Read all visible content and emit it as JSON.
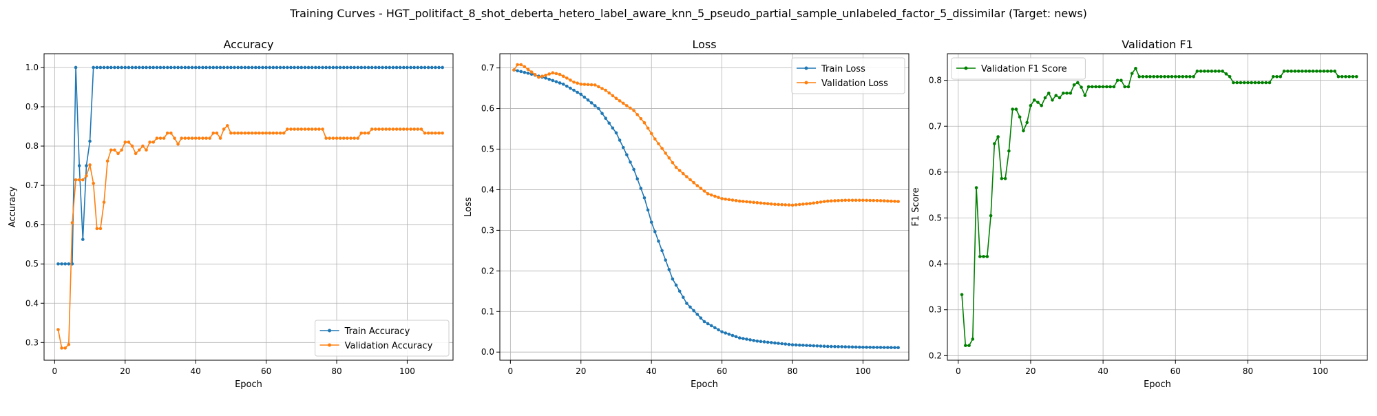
{
  "figure": {
    "suptitle": "Training Curves - HGT_politifact_8_shot_deberta_hetero_label_aware_knn_5_pseudo_partial_sample_unlabeled_factor_5_dissimilar (Target: news)"
  },
  "colors": {
    "blue": "#1f77b4",
    "orange": "#ff7f0e",
    "green": "#008000",
    "grid": "#b0b0b0"
  },
  "chart_data": [
    {
      "type": "line",
      "title": "Accuracy",
      "xlabel": "Epoch",
      "ylabel": "Accuracy",
      "xlim": [
        -3,
        113
      ],
      "ylim": [
        0.255,
        1.035
      ],
      "xticks": [
        0,
        20,
        40,
        60,
        80,
        100
      ],
      "yticks": [
        0.3,
        0.4,
        0.5,
        0.6,
        0.7,
        0.8,
        0.9,
        1.0
      ],
      "grid": true,
      "legend_loc": "lower-right",
      "series": [
        {
          "name": "Train Accuracy",
          "color": "#1f77b4",
          "x_start": 1,
          "x_end": 110,
          "keypoints": [
            [
              1,
              0.5
            ],
            [
              5,
              0.5
            ],
            [
              6,
              1.0
            ],
            [
              7,
              0.75
            ],
            [
              8,
              0.5625
            ],
            [
              9,
              0.75
            ],
            [
              10,
              0.8125
            ],
            [
              11,
              1.0
            ],
            [
              110,
              1.0
            ]
          ]
        },
        {
          "name": "Validation Accuracy",
          "color": "#ff7f0e",
          "x_start": 1,
          "x_end": 110,
          "keypoints": [
            [
              1,
              0.333
            ],
            [
              2,
              0.286
            ],
            [
              3,
              0.286
            ],
            [
              4,
              0.295
            ],
            [
              5,
              0.605
            ],
            [
              6,
              0.714
            ],
            [
              7,
              0.714
            ],
            [
              8,
              0.714
            ],
            [
              9,
              0.724
            ],
            [
              10,
              0.752
            ],
            [
              11,
              0.705
            ],
            [
              12,
              0.59
            ],
            [
              13,
              0.59
            ],
            [
              14,
              0.657
            ],
            [
              15,
              0.762
            ],
            [
              16,
              0.79
            ],
            [
              17,
              0.79
            ],
            [
              18,
              0.781
            ],
            [
              19,
              0.79
            ],
            [
              20,
              0.81
            ],
            [
              21,
              0.81
            ],
            [
              22,
              0.8
            ],
            [
              23,
              0.781
            ],
            [
              24,
              0.79
            ],
            [
              25,
              0.8
            ],
            [
              26,
              0.79
            ],
            [
              27,
              0.81
            ],
            [
              28,
              0.81
            ],
            [
              29,
              0.82
            ],
            [
              31,
              0.82
            ],
            [
              32,
              0.833
            ],
            [
              33,
              0.833
            ],
            [
              34,
              0.82
            ],
            [
              35,
              0.805
            ],
            [
              36,
              0.82
            ],
            [
              44,
              0.82
            ],
            [
              45,
              0.833
            ],
            [
              46,
              0.833
            ],
            [
              47,
              0.82
            ],
            [
              48,
              0.843
            ],
            [
              49,
              0.852
            ],
            [
              50,
              0.833
            ],
            [
              65,
              0.833
            ],
            [
              66,
              0.843
            ],
            [
              76,
              0.843
            ],
            [
              77,
              0.82
            ],
            [
              86,
              0.82
            ],
            [
              87,
              0.833
            ],
            [
              89,
              0.833
            ],
            [
              90,
              0.843
            ],
            [
              104,
              0.843
            ],
            [
              105,
              0.833
            ],
            [
              110,
              0.833
            ]
          ]
        }
      ]
    },
    {
      "type": "line",
      "title": "Loss",
      "xlabel": "Epoch",
      "ylabel": "Loss",
      "xlim": [
        -3,
        113
      ],
      "ylim": [
        -0.02,
        0.735
      ],
      "xticks": [
        0,
        20,
        40,
        60,
        80,
        100
      ],
      "yticks": [
        0.0,
        0.1,
        0.2,
        0.3,
        0.4,
        0.5,
        0.6,
        0.7
      ],
      "grid": true,
      "legend_loc": "upper-right",
      "series": [
        {
          "name": "Train Loss",
          "color": "#1f77b4",
          "x_start": 1,
          "x_end": 110,
          "keypoints": [
            [
              1,
              0.695
            ],
            [
              5,
              0.687
            ],
            [
              10,
              0.675
            ],
            [
              15,
              0.66
            ],
            [
              20,
              0.635
            ],
            [
              25,
              0.6
            ],
            [
              30,
              0.54
            ],
            [
              35,
              0.45
            ],
            [
              38,
              0.38
            ],
            [
              40,
              0.32
            ],
            [
              43,
              0.25
            ],
            [
              46,
              0.18
            ],
            [
              50,
              0.12
            ],
            [
              55,
              0.075
            ],
            [
              60,
              0.05
            ],
            [
              65,
              0.035
            ],
            [
              70,
              0.027
            ],
            [
              80,
              0.018
            ],
            [
              90,
              0.014
            ],
            [
              100,
              0.012
            ],
            [
              110,
              0.011
            ]
          ]
        },
        {
          "name": "Validation Loss",
          "color": "#ff7f0e",
          "x_start": 1,
          "x_end": 110,
          "keypoints": [
            [
              1,
              0.695
            ],
            [
              2,
              0.708
            ],
            [
              3,
              0.708
            ],
            [
              4,
              0.703
            ],
            [
              6,
              0.69
            ],
            [
              8,
              0.677
            ],
            [
              10,
              0.682
            ],
            [
              12,
              0.688
            ],
            [
              14,
              0.684
            ],
            [
              16,
              0.675
            ],
            [
              18,
              0.665
            ],
            [
              20,
              0.66
            ],
            [
              24,
              0.658
            ],
            [
              27,
              0.645
            ],
            [
              30,
              0.625
            ],
            [
              35,
              0.595
            ],
            [
              38,
              0.565
            ],
            [
              41,
              0.525
            ],
            [
              44,
              0.49
            ],
            [
              47,
              0.455
            ],
            [
              50,
              0.432
            ],
            [
              53,
              0.41
            ],
            [
              56,
              0.39
            ],
            [
              60,
              0.378
            ],
            [
              65,
              0.372
            ],
            [
              70,
              0.368
            ],
            [
              75,
              0.364
            ],
            [
              80,
              0.362
            ],
            [
              85,
              0.366
            ],
            [
              90,
              0.372
            ],
            [
              95,
              0.374
            ],
            [
              100,
              0.374
            ],
            [
              105,
              0.373
            ],
            [
              110,
              0.371
            ]
          ]
        }
      ]
    },
    {
      "type": "line",
      "title": "Validation F1",
      "xlabel": "Epoch",
      "ylabel": "F1 Score",
      "xlim": [
        -3,
        113
      ],
      "ylim": [
        0.19,
        0.858
      ],
      "xticks": [
        0,
        20,
        40,
        60,
        80,
        100
      ],
      "yticks": [
        0.2,
        0.3,
        0.4,
        0.5,
        0.6,
        0.7,
        0.8
      ],
      "grid": true,
      "legend_loc": "upper-left",
      "series": [
        {
          "name": "Validation F1 Score",
          "color": "#008000",
          "x_start": 1,
          "x_end": 110,
          "keypoints": [
            [
              1,
              0.333
            ],
            [
              2,
              0.222
            ],
            [
              3,
              0.222
            ],
            [
              4,
              0.236
            ],
            [
              5,
              0.566
            ],
            [
              6,
              0.416
            ],
            [
              7,
              0.416
            ],
            [
              8,
              0.416
            ],
            [
              9,
              0.505
            ],
            [
              10,
              0.662
            ],
            [
              11,
              0.677
            ],
            [
              12,
              0.586
            ],
            [
              13,
              0.586
            ],
            [
              14,
              0.646
            ],
            [
              15,
              0.737
            ],
            [
              16,
              0.737
            ],
            [
              17,
              0.72
            ],
            [
              18,
              0.69
            ],
            [
              19,
              0.708
            ],
            [
              20,
              0.745
            ],
            [
              21,
              0.757
            ],
            [
              22,
              0.752
            ],
            [
              23,
              0.745
            ],
            [
              24,
              0.762
            ],
            [
              25,
              0.772
            ],
            [
              26,
              0.757
            ],
            [
              27,
              0.767
            ],
            [
              28,
              0.762
            ],
            [
              29,
              0.772
            ],
            [
              31,
              0.772
            ],
            [
              32,
              0.79
            ],
            [
              33,
              0.795
            ],
            [
              34,
              0.785
            ],
            [
              35,
              0.767
            ],
            [
              36,
              0.786
            ],
            [
              43,
              0.786
            ],
            [
              44,
              0.8
            ],
            [
              45,
              0.8
            ],
            [
              46,
              0.786
            ],
            [
              47,
              0.786
            ],
            [
              48,
              0.815
            ],
            [
              49,
              0.826
            ],
            [
              50,
              0.808
            ],
            [
              65,
              0.808
            ],
            [
              66,
              0.82
            ],
            [
              73,
              0.82
            ],
            [
              75,
              0.808
            ],
            [
              76,
              0.795
            ],
            [
              86,
              0.795
            ],
            [
              87,
              0.808
            ],
            [
              89,
              0.808
            ],
            [
              90,
              0.82
            ],
            [
              103,
              0.82
            ],
            [
              104,
              0.82
            ],
            [
              105,
              0.808
            ],
            [
              110,
              0.808
            ]
          ]
        }
      ]
    }
  ]
}
